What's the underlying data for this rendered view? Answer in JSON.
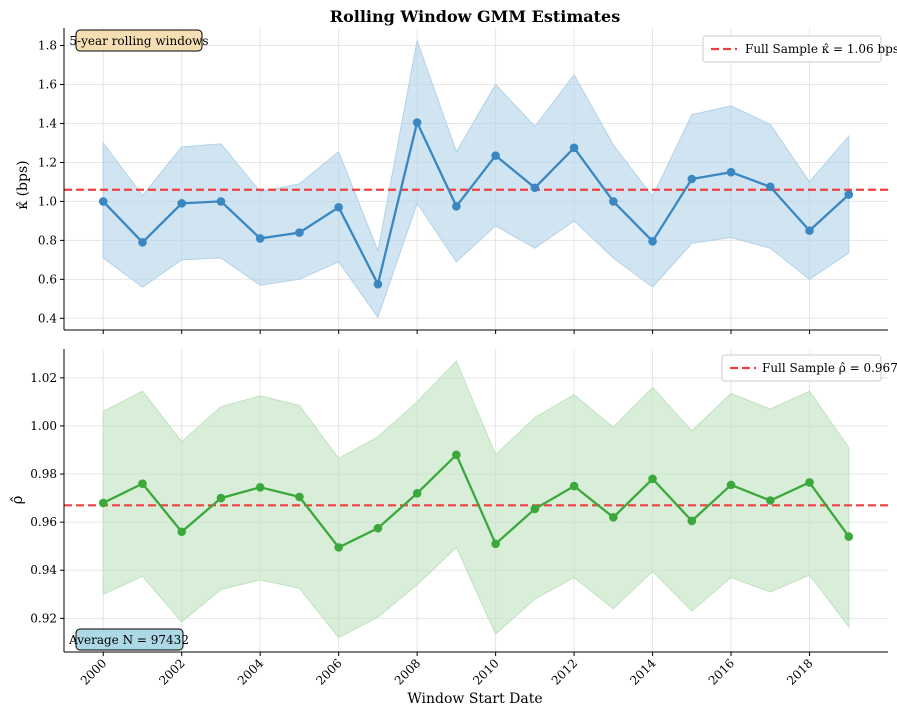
{
  "chart_data": [
    {
      "type": "line",
      "title": "Rolling Window GMM Estimates",
      "ylabel": "κ̂ (bps)",
      "xlabel": "",
      "x": [
        2000,
        2001,
        2002,
        2003,
        2004,
        2005,
        2006,
        2007,
        2008,
        2009,
        2010,
        2011,
        2012,
        2013,
        2014,
        2015,
        2016,
        2017,
        2018,
        2019
      ],
      "series": [
        {
          "name": "kappa",
          "color": "#3a87c1",
          "values": [
            1.0,
            0.79,
            0.99,
            1.0,
            0.81,
            0.84,
            0.97,
            0.575,
            1.405,
            0.975,
            1.235,
            1.07,
            1.275,
            1.0,
            0.795,
            1.115,
            1.15,
            1.075,
            0.85,
            1.035
          ]
        },
        {
          "name": "upper",
          "values": [
            1.3,
            1.03,
            1.28,
            1.295,
            1.05,
            1.09,
            1.255,
            0.745,
            1.825,
            1.255,
            1.6,
            1.385,
            1.65,
            1.29,
            1.025,
            1.445,
            1.49,
            1.395,
            1.1,
            1.335
          ]
        },
        {
          "name": "lower",
          "values": [
            0.71,
            0.56,
            0.7,
            0.71,
            0.57,
            0.6,
            0.69,
            0.405,
            0.99,
            0.69,
            0.875,
            0.76,
            0.9,
            0.71,
            0.56,
            0.785,
            0.815,
            0.76,
            0.6,
            0.735
          ]
        }
      ],
      "band_color": "#b3d2e8",
      "ylim": [
        0.34,
        1.89
      ],
      "yticks": [
        0.4,
        0.6,
        0.8,
        1.0,
        1.2,
        1.4,
        1.6,
        1.8
      ],
      "ytick_labels": [
        "0.4",
        "0.6",
        "0.8",
        "1.0",
        "1.2",
        "1.4",
        "1.6",
        "1.8"
      ],
      "reference_line": {
        "value": 1.06,
        "color": "#f04040"
      },
      "legend": {
        "label": "Full Sample κ̂ = 1.06 bps",
        "position": "top-right"
      },
      "annotation": {
        "text": "5-year rolling windows",
        "position": "top-left",
        "bg": "#f5deb3"
      }
    },
    {
      "type": "line",
      "title": "",
      "ylabel": "ρ̂",
      "xlabel": "Window Start Date",
      "x": [
        2000,
        2001,
        2002,
        2003,
        2004,
        2005,
        2006,
        2007,
        2008,
        2009,
        2010,
        2011,
        2012,
        2013,
        2014,
        2015,
        2016,
        2017,
        2018,
        2019
      ],
      "series": [
        {
          "name": "rho",
          "color": "#3aa83a",
          "values": [
            0.968,
            0.976,
            0.956,
            0.97,
            0.9745,
            0.9705,
            0.9495,
            0.9575,
            0.972,
            0.988,
            0.951,
            0.9655,
            0.975,
            0.962,
            0.978,
            0.9605,
            0.9755,
            0.969,
            0.9765,
            0.954
          ]
        },
        {
          "name": "upper",
          "values": [
            1.006,
            1.0145,
            0.9935,
            1.008,
            1.0125,
            1.0085,
            0.9865,
            0.9955,
            1.01,
            1.027,
            0.988,
            1.0035,
            1.013,
            0.9995,
            1.016,
            0.998,
            1.0135,
            1.007,
            1.0145,
            0.991
          ]
        },
        {
          "name": "lower",
          "values": [
            0.93,
            0.9375,
            0.9185,
            0.932,
            0.936,
            0.9325,
            0.912,
            0.9205,
            0.934,
            0.9495,
            0.9135,
            0.928,
            0.937,
            0.924,
            0.9395,
            0.923,
            0.937,
            0.931,
            0.938,
            0.9165
          ]
        }
      ],
      "band_color": "#bfe3bf",
      "ylim": [
        0.906,
        1.032
      ],
      "yticks": [
        0.92,
        0.94,
        0.96,
        0.98,
        1.0,
        1.02
      ],
      "ytick_labels": [
        "0.92",
        "0.94",
        "0.96",
        "0.98",
        "1.00",
        "1.02"
      ],
      "xticks": [
        2000,
        2002,
        2004,
        2006,
        2008,
        2010,
        2012,
        2014,
        2016,
        2018
      ],
      "xtick_labels": [
        "2000",
        "2002",
        "2004",
        "2006",
        "2008",
        "2010",
        "2012",
        "2014",
        "2016",
        "2018"
      ],
      "reference_line": {
        "value": 0.967,
        "color": "#f04040"
      },
      "legend": {
        "label": "Full Sample ρ̂ = 0.967",
        "position": "top-right"
      },
      "annotation": {
        "text": "Average N = 97432",
        "position": "bottom-left",
        "bg": "#add8e6"
      }
    }
  ]
}
